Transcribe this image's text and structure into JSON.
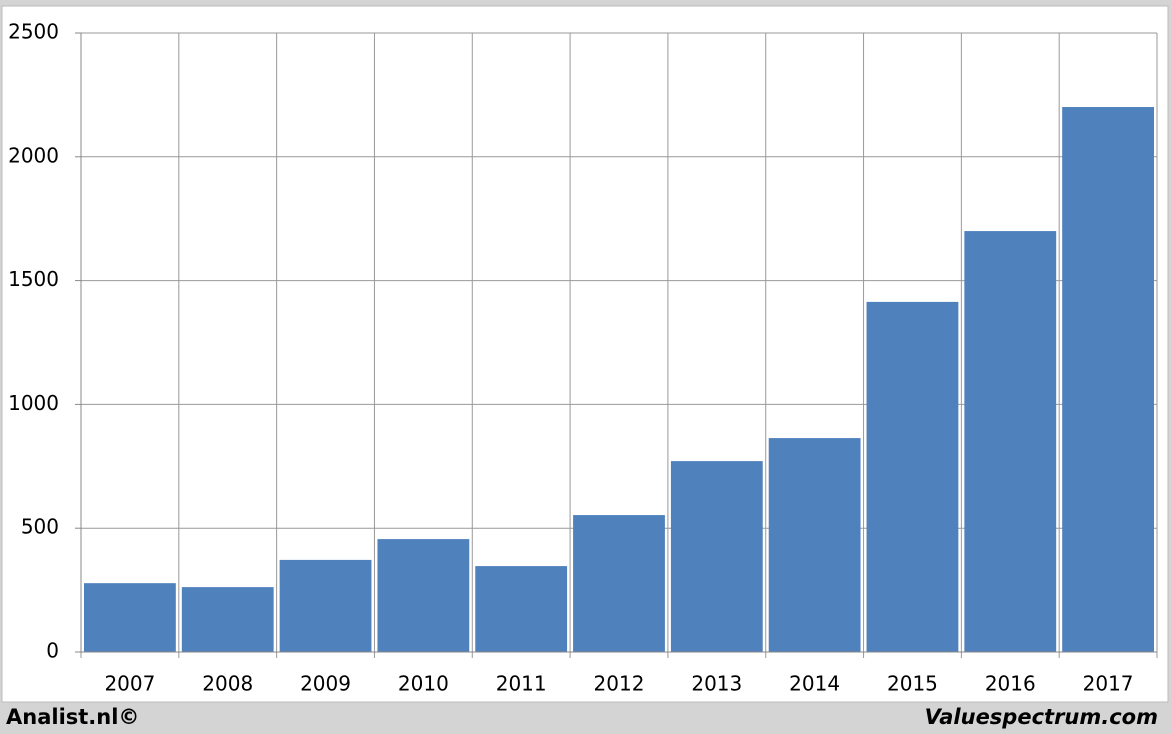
{
  "chart_data": {
    "type": "bar",
    "categories": [
      "2007",
      "2008",
      "2009",
      "2010",
      "2011",
      "2012",
      "2013",
      "2014",
      "2015",
      "2016",
      "2017"
    ],
    "values": [
      278,
      262,
      372,
      456,
      347,
      553,
      771,
      864,
      1414,
      1700,
      2201
    ],
    "color": "#4f81bd",
    "ylim": [
      0,
      2500
    ],
    "yticks": [
      0,
      500,
      1000,
      1500,
      2000,
      2500
    ],
    "grid": true
  },
  "footer": {
    "left": "Analist.nl©",
    "right": "Valuespectrum.com"
  }
}
